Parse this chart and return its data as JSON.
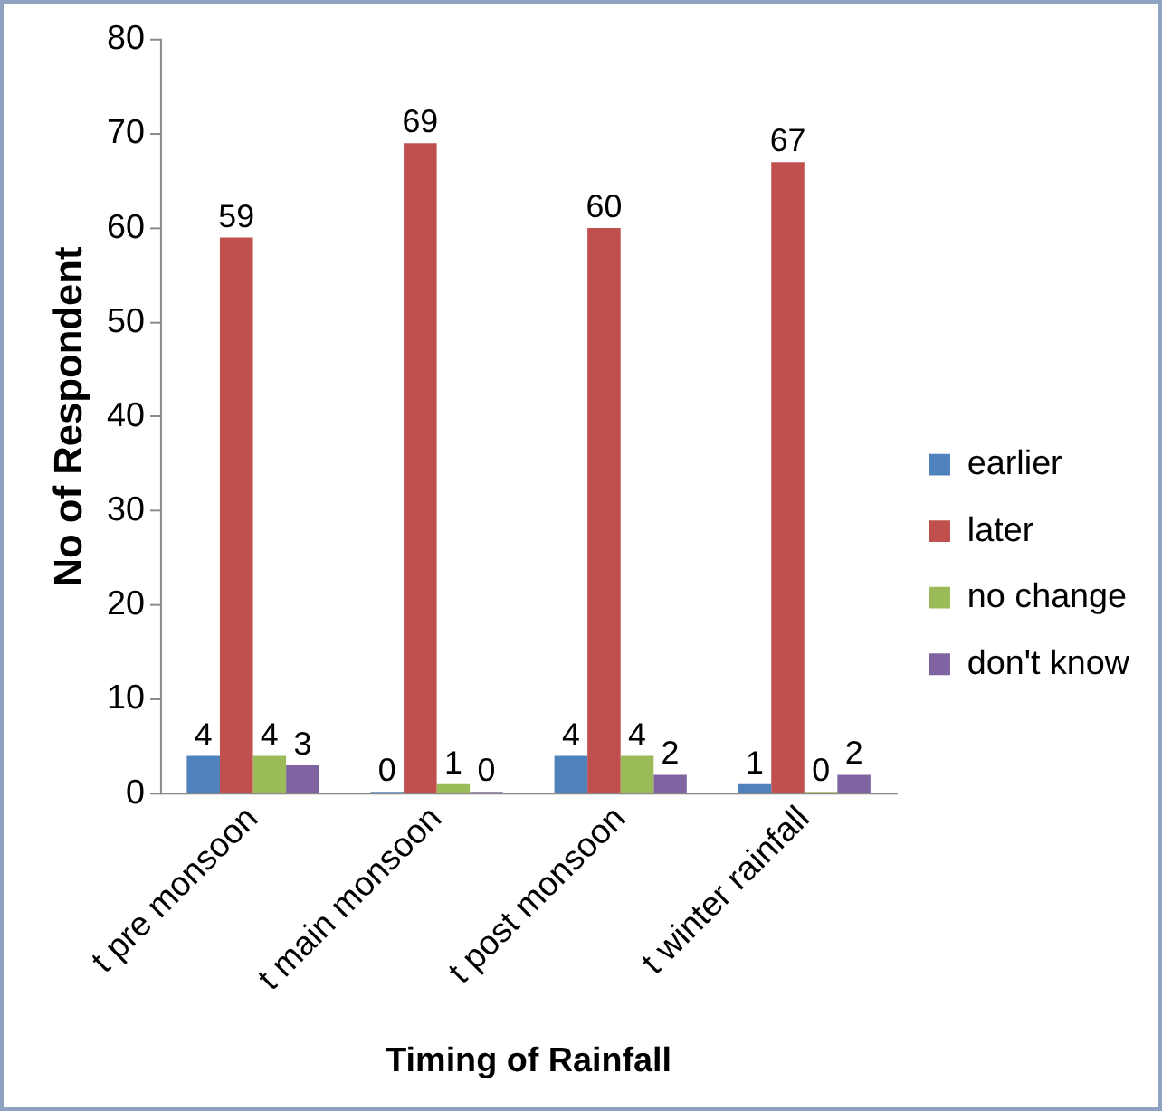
{
  "chart_data": {
    "type": "bar",
    "xlabel": "Timing of Rainfall",
    "ylabel": "No of Respondent",
    "categories": [
      "t pre monsoon",
      "t main monsoon",
      "t post monsoon",
      "t winter rainfall"
    ],
    "series": [
      {
        "name": "earlier",
        "color": "#4f81bd",
        "values": [
          4,
          0,
          4,
          1
        ]
      },
      {
        "name": "later",
        "color": "#c0504d",
        "values": [
          59,
          69,
          60,
          67
        ]
      },
      {
        "name": "no change",
        "color": "#9bbb59",
        "values": [
          4,
          1,
          4,
          0
        ]
      },
      {
        "name": "don't know",
        "color": "#8064a2",
        "values": [
          3,
          0,
          2,
          2
        ]
      }
    ],
    "ylim": [
      0,
      80
    ],
    "yticks": [
      0,
      10,
      20,
      30,
      40,
      50,
      60,
      70,
      80
    ],
    "grid": false,
    "legend": "right",
    "data_labels": true
  }
}
